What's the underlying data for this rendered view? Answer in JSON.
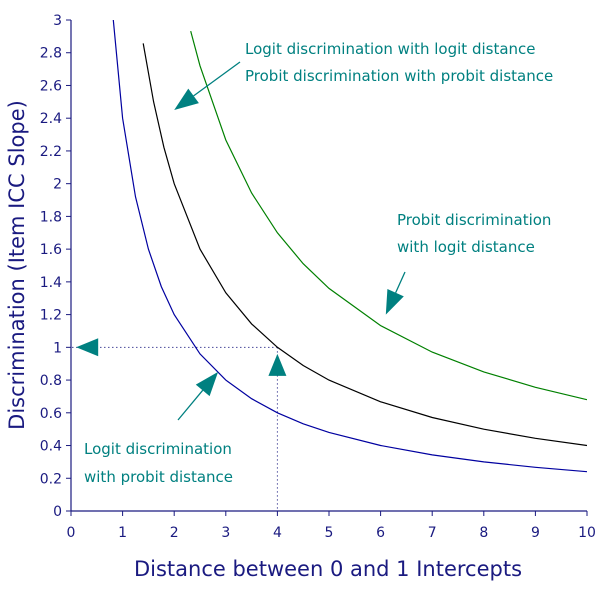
{
  "chart_data": {
    "type": "line",
    "title": "",
    "xlabel": "Distance between 0 and 1 Intercepts",
    "ylabel": "Discrimination (Item ICC Slope)",
    "xlim": [
      0,
      10
    ],
    "ylim": [
      0,
      3
    ],
    "x_ticks": [
      "0",
      "1",
      "2",
      "3",
      "4",
      "5",
      "6",
      "7",
      "8",
      "9",
      "10"
    ],
    "y_ticks": [
      "0",
      "0.2",
      "0.4",
      "0.6",
      "0.8",
      "1",
      "1.2",
      "1.4",
      "1.6",
      "1.8",
      "2",
      "2.2",
      "2.4",
      "2.6",
      "2.8",
      "3"
    ],
    "x_tick_values": [
      0,
      1,
      2,
      3,
      4,
      5,
      6,
      7,
      8,
      9,
      10
    ],
    "y_tick_values": [
      0,
      0.2,
      0.4,
      0.6,
      0.8,
      1,
      1.2,
      1.4,
      1.6,
      1.8,
      2,
      2.2,
      2.4,
      2.6,
      2.8,
      3
    ],
    "grid": false,
    "series": [
      {
        "color": "#0000a0",
        "x": [
          0.82,
          1.0,
          1.25,
          1.5,
          1.75,
          2.0,
          2.5,
          3.0,
          3.5,
          4.0,
          4.5,
          5.0,
          6.0,
          7.0,
          8.0,
          9.0,
          10.0
        ],
        "y": [
          3.0,
          2.4,
          1.92,
          1.6,
          1.371,
          1.2,
          0.96,
          0.8,
          0.686,
          0.6,
          0.533,
          0.48,
          0.4,
          0.343,
          0.3,
          0.267,
          0.24
        ]
      },
      {
        "color": "#000000",
        "x": [
          1.4,
          1.6,
          1.8,
          2.0,
          2.5,
          3.0,
          3.5,
          4.0,
          4.5,
          5.0,
          6.0,
          7.0,
          8.0,
          9.0,
          10.0
        ],
        "y": [
          2.857,
          2.5,
          2.222,
          2.0,
          1.6,
          1.333,
          1.143,
          1.0,
          0.889,
          0.8,
          0.667,
          0.571,
          0.5,
          0.444,
          0.4
        ]
      },
      {
        "color": "#008000",
        "x": [
          2.32,
          2.5,
          3.0,
          3.5,
          4.0,
          4.5,
          5.0,
          6.0,
          7.0,
          8.0,
          9.0,
          10.0
        ],
        "y": [
          2.932,
          2.72,
          2.267,
          1.943,
          1.7,
          1.511,
          1.36,
          1.133,
          0.971,
          0.85,
          0.756,
          0.68
        ]
      }
    ],
    "reference_lines": [
      {
        "from": [
          4,
          1
        ],
        "to": [
          0,
          1
        ],
        "style": "dotted"
      },
      {
        "from": [
          4,
          1
        ],
        "to": [
          4,
          0
        ],
        "style": "dotted"
      }
    ],
    "annotations": [
      {
        "lines": [
          "Logit discrimination with logit distance",
          "Probit discrimination with probit distance"
        ],
        "arrow_to": [
          2.0,
          2.45
        ]
      },
      {
        "lines": [
          "Probit discrimination",
          "with logit distance"
        ],
        "arrow_to": [
          6.1,
          1.2
        ]
      },
      {
        "lines": [
          "Logit discrimination",
          "with probit distance"
        ],
        "arrow_to": [
          2.85,
          0.85
        ]
      }
    ],
    "marker_arrows": [
      {
        "at": [
          0.1,
          1.0
        ],
        "direction": "left"
      },
      {
        "at": [
          4.0,
          0.96
        ],
        "direction": "up"
      }
    ]
  }
}
